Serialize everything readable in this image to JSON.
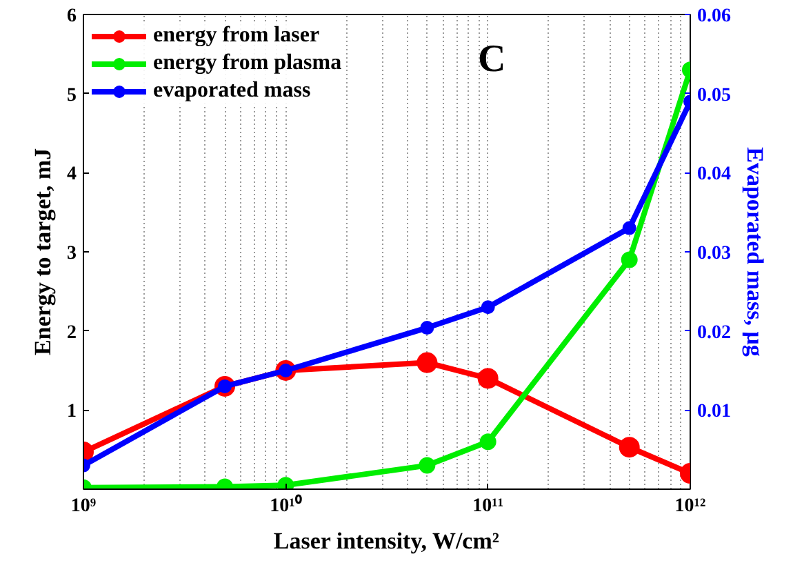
{
  "chart_data": {
    "type": "line",
    "xlabel": "Laser intensity, W/cm²",
    "ylabel": "Energy to target, mJ",
    "y2label": "Evaporated mass, μg",
    "annotations": [
      "C"
    ],
    "x": [
      1000000000.0,
      5000000000.0,
      10000000000.0,
      50000000000.0,
      100000000000.0,
      500000000000.0,
      1000000000000.0
    ],
    "series": [
      {
        "name": "energy from laser",
        "color": "#ff0000",
        "values": [
          0.47,
          1.3,
          1.5,
          1.6,
          1.4,
          0.53,
          0.2
        ]
      },
      {
        "name": "energy from plasma",
        "color": "#00ee00",
        "values": [
          0.02,
          0.03,
          0.05,
          0.3,
          0.6,
          2.9,
          5.3
        ]
      },
      {
        "name": "evaporated mass",
        "color": "#0000ff",
        "axis": "y2",
        "values": [
          0.003,
          0.013,
          0.015,
          0.0204,
          0.023,
          0.033,
          0.049
        ]
      }
    ],
    "log": "x",
    "xlim": [
      1000000000.0,
      1000000000000.0
    ],
    "xticks": [
      {
        "value": 1000000000.0,
        "label": "10⁹"
      },
      {
        "value": 10000000000.0,
        "label": "10¹⁰"
      },
      {
        "value": 100000000000.0,
        "label": "10¹¹"
      },
      {
        "value": 1000000000000.0,
        "label": "10¹²"
      }
    ],
    "ylim": [
      0,
      6
    ],
    "yticks": [
      1,
      2,
      3,
      4,
      5,
      6
    ],
    "y2lim": [
      0,
      0.06
    ],
    "y2ticks": [
      0.01,
      0.02,
      0.03,
      0.04,
      0.05,
      0.06
    ],
    "grid": "x",
    "legend": "top left",
    "marker": "circle",
    "line_style": "solid"
  }
}
